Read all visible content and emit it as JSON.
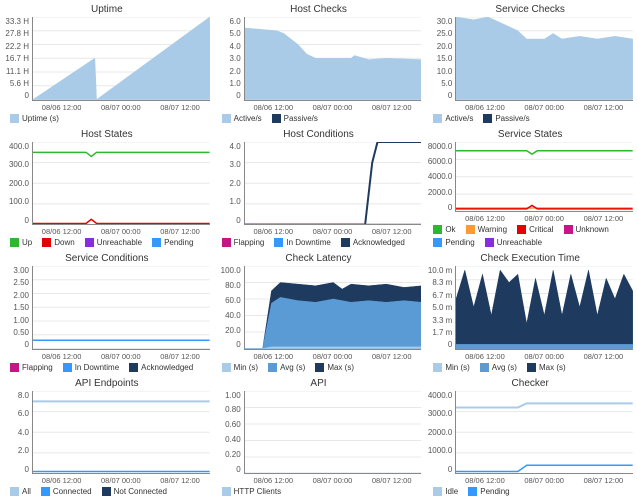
{
  "colors": {
    "area_light": "#a9cbe8",
    "area_dark": "#1e3a5f",
    "line_green": "#2eb82e",
    "line_magenta": "#c71585",
    "line_orange": "#ff9933",
    "line_red": "#e60000",
    "line_purple": "#8a2be2",
    "line_blue": "#3399ff",
    "grid": "#e8e8e8",
    "axis": "#888888",
    "bg": "#ffffff"
  },
  "x_ticks": [
    "08/06 12:00",
    "08/07 00:00",
    "08/07 12:00"
  ],
  "panels": [
    {
      "id": "uptime",
      "title": "Uptime",
      "type": "area",
      "y_ticks": [
        "33.3 H",
        "27.8 H",
        "22.2 H",
        "16.7 H",
        "11.1 H",
        "5.6 H",
        "0"
      ],
      "ylim": [
        0,
        33.3
      ],
      "series": [
        {
          "name": "Uptime (s)",
          "color": "#a9cbe8",
          "fill": true,
          "points": [
            [
              0,
              0
            ],
            [
              35,
              16.7
            ],
            [
              36,
              0
            ],
            [
              100,
              33.3
            ]
          ]
        }
      ],
      "legend": [
        {
          "label": "Uptime (s)",
          "color": "#a9cbe8"
        }
      ]
    },
    {
      "id": "hostchecks",
      "title": "Host Checks",
      "type": "area",
      "y_ticks": [
        "6.0",
        "5.0",
        "4.0",
        "3.0",
        "2.0",
        "1.0",
        "0"
      ],
      "ylim": [
        0,
        6
      ],
      "series": [
        {
          "name": "Active/s",
          "color": "#a9cbe8",
          "fill": true,
          "points": [
            [
              0,
              5.2
            ],
            [
              18,
              5.0
            ],
            [
              22,
              4.8
            ],
            [
              30,
              4.0
            ],
            [
              35,
              3.3
            ],
            [
              40,
              3.0
            ],
            [
              60,
              3.0
            ],
            [
              62,
              3.2
            ],
            [
              70,
              2.9
            ],
            [
              80,
              3.0
            ],
            [
              100,
              2.9
            ]
          ]
        }
      ],
      "legend": [
        {
          "label": "Active/s",
          "color": "#a9cbe8"
        },
        {
          "label": "Passive/s",
          "color": "#1e3a5f"
        }
      ]
    },
    {
      "id": "servicechecks",
      "title": "Service Checks",
      "type": "area",
      "y_ticks": [
        "30.0",
        "25.0",
        "20.0",
        "15.0",
        "10.0",
        "5.0",
        "0"
      ],
      "ylim": [
        0,
        30
      ],
      "series": [
        {
          "name": "Active/s",
          "color": "#a9cbe8",
          "fill": true,
          "points": [
            [
              0,
              30
            ],
            [
              10,
              29
            ],
            [
              18,
              30
            ],
            [
              25,
              28
            ],
            [
              35,
              25
            ],
            [
              40,
              22
            ],
            [
              50,
              22
            ],
            [
              55,
              24
            ],
            [
              60,
              22
            ],
            [
              70,
              23
            ],
            [
              80,
              22
            ],
            [
              90,
              23
            ],
            [
              100,
              22
            ]
          ]
        }
      ],
      "legend": [
        {
          "label": "Active/s",
          "color": "#a9cbe8"
        },
        {
          "label": "Passive/s",
          "color": "#1e3a5f"
        }
      ]
    },
    {
      "id": "hoststates",
      "title": "Host States",
      "type": "line",
      "y_ticks": [
        "400.0",
        "300.0",
        "200.0",
        "100.0",
        "0"
      ],
      "ylim": [
        0,
        400
      ],
      "series": [
        {
          "name": "Up",
          "color": "#2eb82e",
          "fill": false,
          "points": [
            [
              0,
              350
            ],
            [
              30,
              350
            ],
            [
              33,
              330
            ],
            [
              36,
              350
            ],
            [
              100,
              350
            ]
          ]
        },
        {
          "name": "Down",
          "color": "#e60000",
          "fill": false,
          "points": [
            [
              0,
              5
            ],
            [
              30,
              5
            ],
            [
              33,
              25
            ],
            [
              36,
              5
            ],
            [
              100,
              5
            ]
          ]
        }
      ],
      "legend": [
        {
          "label": "Up",
          "color": "#2eb82e"
        },
        {
          "label": "Down",
          "color": "#e60000"
        },
        {
          "label": "Unreachable",
          "color": "#8a2be2"
        },
        {
          "label": "Pending",
          "color": "#3399ff"
        }
      ]
    },
    {
      "id": "hostconditions",
      "title": "Host Conditions",
      "type": "line",
      "y_ticks": [
        "4.0",
        "3.0",
        "2.0",
        "1.0",
        "0"
      ],
      "ylim": [
        0,
        4
      ],
      "series": [
        {
          "name": "Acknowledged",
          "color": "#1e3a5f",
          "fill": false,
          "width": 2,
          "points": [
            [
              0,
              0
            ],
            [
              68,
              0
            ],
            [
              72,
              3.0
            ],
            [
              75,
              4.0
            ],
            [
              100,
              4.0
            ]
          ]
        },
        {
          "name": "Flapping",
          "color": "#c71585",
          "fill": false,
          "points": [
            [
              0,
              0
            ],
            [
              100,
              0
            ]
          ]
        }
      ],
      "legend": [
        {
          "label": "Flapping",
          "color": "#c71585"
        },
        {
          "label": "In Downtime",
          "color": "#3399ff"
        },
        {
          "label": "Acknowledged",
          "color": "#1e3a5f"
        }
      ]
    },
    {
      "id": "servicestates",
      "title": "Service States",
      "type": "line",
      "y_ticks": [
        "8000.0",
        "6000.0",
        "4000.0",
        "2000.0",
        "0"
      ],
      "ylim": [
        0,
        8000
      ],
      "series": [
        {
          "name": "Ok",
          "color": "#2eb82e",
          "fill": false,
          "points": [
            [
              0,
              7000
            ],
            [
              40,
              7000
            ],
            [
              43,
              6600
            ],
            [
              46,
              7000
            ],
            [
              100,
              7000
            ]
          ]
        },
        {
          "name": "Warning",
          "color": "#ff9933",
          "fill": false,
          "points": [
            [
              0,
              400
            ],
            [
              100,
              400
            ]
          ]
        },
        {
          "name": "Critical",
          "color": "#e60000",
          "fill": false,
          "points": [
            [
              0,
              300
            ],
            [
              40,
              300
            ],
            [
              43,
              700
            ],
            [
              46,
              300
            ],
            [
              100,
              300
            ]
          ]
        }
      ],
      "legend": [
        {
          "label": "Ok",
          "color": "#2eb82e"
        },
        {
          "label": "Warning",
          "color": "#ff9933"
        },
        {
          "label": "Critical",
          "color": "#e60000"
        },
        {
          "label": "Unknown",
          "color": "#c71585"
        },
        {
          "label": "Pending",
          "color": "#3399ff"
        },
        {
          "label": "Unreachable",
          "color": "#8a2be2"
        }
      ]
    },
    {
      "id": "serviceconditions",
      "title": "Service Conditions",
      "type": "line",
      "y_ticks": [
        "3.00",
        "2.50",
        "2.00",
        "1.50",
        "1.00",
        "0.50",
        "0"
      ],
      "ylim": [
        0,
        3
      ],
      "series": [
        {
          "name": "In Downtime",
          "color": "#3399ff",
          "fill": false,
          "points": [
            [
              0,
              0.3
            ],
            [
              100,
              0.3
            ]
          ]
        }
      ],
      "legend": [
        {
          "label": "Flapping",
          "color": "#c71585"
        },
        {
          "label": "In Downtime",
          "color": "#3399ff"
        },
        {
          "label": "Acknowledged",
          "color": "#1e3a5f"
        }
      ]
    },
    {
      "id": "checklatency",
      "title": "Check Latency",
      "type": "area",
      "y_ticks": [
        "100.0",
        "80.0",
        "60.0",
        "40.0",
        "20.0",
        "0"
      ],
      "ylim": [
        0,
        100
      ],
      "series": [
        {
          "name": "Max",
          "color": "#1e3a5f",
          "fill": true,
          "points": [
            [
              0,
              0
            ],
            [
              10,
              0
            ],
            [
              15,
              70
            ],
            [
              20,
              80
            ],
            [
              30,
              78
            ],
            [
              40,
              76
            ],
            [
              50,
              80
            ],
            [
              55,
              72
            ],
            [
              60,
              78
            ],
            [
              70,
              76
            ],
            [
              80,
              78
            ],
            [
              90,
              74
            ],
            [
              100,
              76
            ]
          ]
        },
        {
          "name": "Avg",
          "color": "#5b9bd5",
          "fill": true,
          "points": [
            [
              0,
              0
            ],
            [
              10,
              0
            ],
            [
              15,
              55
            ],
            [
              20,
              62
            ],
            [
              30,
              58
            ],
            [
              40,
              56
            ],
            [
              50,
              60
            ],
            [
              60,
              56
            ],
            [
              70,
              58
            ],
            [
              80,
              56
            ],
            [
              90,
              58
            ],
            [
              100,
              56
            ]
          ]
        },
        {
          "name": "Min",
          "color": "#a9cbe8",
          "fill": true,
          "points": [
            [
              0,
              0
            ],
            [
              10,
              0
            ],
            [
              15,
              2
            ],
            [
              100,
              2
            ]
          ]
        }
      ],
      "legend": [
        {
          "label": "Min (s)",
          "color": "#a9cbe8"
        },
        {
          "label": "Avg (s)",
          "color": "#5b9bd5"
        },
        {
          "label": "Max (s)",
          "color": "#1e3a5f"
        }
      ]
    },
    {
      "id": "checkexec",
      "title": "Check Execution Time",
      "type": "area",
      "y_ticks": [
        "10.0 m",
        "8.3 m",
        "6.7 m",
        "5.0 m",
        "3.3 m",
        "1.7 m",
        "0"
      ],
      "ylim": [
        0,
        10
      ],
      "series": [
        {
          "name": "Max",
          "color": "#1e3a5f",
          "fill": true,
          "points": [
            [
              0,
              6
            ],
            [
              5,
              9.5
            ],
            [
              10,
              5
            ],
            [
              15,
              9
            ],
            [
              20,
              4
            ],
            [
              25,
              9.5
            ],
            [
              30,
              8
            ],
            [
              35,
              9
            ],
            [
              40,
              3
            ],
            [
              45,
              8.5
            ],
            [
              50,
              4
            ],
            [
              55,
              9.5
            ],
            [
              60,
              4
            ],
            [
              65,
              9
            ],
            [
              70,
              5
            ],
            [
              75,
              9.5
            ],
            [
              80,
              4
            ],
            [
              85,
              8.5
            ],
            [
              90,
              6
            ],
            [
              95,
              9
            ],
            [
              100,
              7
            ]
          ]
        },
        {
          "name": "Avg",
          "color": "#5b9bd5",
          "fill": true,
          "points": [
            [
              0,
              0.5
            ],
            [
              100,
              0.5
            ]
          ]
        }
      ],
      "legend": [
        {
          "label": "Min (s)",
          "color": "#a9cbe8"
        },
        {
          "label": "Avg (s)",
          "color": "#5b9bd5"
        },
        {
          "label": "Max (s)",
          "color": "#1e3a5f"
        }
      ]
    },
    {
      "id": "apiendpoints",
      "title": "API Endpoints",
      "type": "line",
      "y_ticks": [
        "8.0",
        "6.0",
        "4.0",
        "2.0",
        "0"
      ],
      "ylim": [
        0,
        8
      ],
      "series": [
        {
          "name": "All",
          "color": "#a9cbe8",
          "fill": false,
          "width": 2,
          "points": [
            [
              0,
              7
            ],
            [
              100,
              7
            ]
          ]
        },
        {
          "name": "Connected",
          "color": "#3399ff",
          "fill": false,
          "points": [
            [
              0,
              0.2
            ],
            [
              100,
              0.2
            ]
          ]
        }
      ],
      "legend": [
        {
          "label": "All",
          "color": "#a9cbe8"
        },
        {
          "label": "Connected",
          "color": "#3399ff"
        },
        {
          "label": "Not Connected",
          "color": "#1e3a5f"
        }
      ]
    },
    {
      "id": "api",
      "title": "API",
      "type": "line",
      "y_ticks": [
        "1.00",
        "0.80",
        "0.60",
        "0.40",
        "0.20",
        "0"
      ],
      "ylim": [
        0,
        1
      ],
      "series": [
        {
          "name": "HTTP Clients",
          "color": "#a9cbe8",
          "fill": false,
          "points": [
            [
              0,
              0
            ],
            [
              100,
              0
            ]
          ]
        }
      ],
      "legend": [
        {
          "label": "HTTP Clients",
          "color": "#a9cbe8"
        }
      ]
    },
    {
      "id": "checker",
      "title": "Checker",
      "type": "line",
      "y_ticks": [
        "4000.0",
        "3000.0",
        "2000.0",
        "1000.0",
        "0"
      ],
      "ylim": [
        0,
        4000
      ],
      "series": [
        {
          "name": "Idle",
          "color": "#a9cbe8",
          "fill": false,
          "width": 2,
          "points": [
            [
              0,
              3200
            ],
            [
              35,
              3200
            ],
            [
              40,
              3400
            ],
            [
              100,
              3400
            ]
          ]
        },
        {
          "name": "Pending",
          "color": "#3399ff",
          "fill": false,
          "points": [
            [
              0,
              100
            ],
            [
              35,
              100
            ],
            [
              40,
              400
            ],
            [
              100,
              400
            ]
          ]
        }
      ],
      "legend": [
        {
          "label": "Idle",
          "color": "#a9cbe8"
        },
        {
          "label": "Pending",
          "color": "#3399ff"
        }
      ]
    }
  ]
}
